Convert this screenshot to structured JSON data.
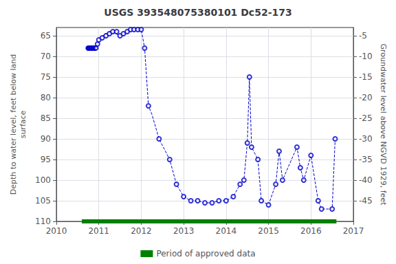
{
  "chart_data": {
    "type": "line",
    "title": "USGS 393548075380101 Dc52-173",
    "ylabel": "Depth to water level, feet below land\nsurface",
    "y2label": "Groundwater level above NGVD 1929, feet",
    "xlim": [
      2010,
      2017
    ],
    "xticks": [
      2010,
      2011,
      2012,
      2013,
      2014,
      2015,
      2016,
      2017
    ],
    "ylim": [
      110,
      63
    ],
    "yticks": [
      65,
      70,
      75,
      80,
      85,
      90,
      95,
      100,
      105,
      110
    ],
    "y2lim": [
      -50,
      -3
    ],
    "y2ticks": [
      -5,
      -10,
      -15,
      -20,
      -25,
      -30,
      -35,
      -40,
      -45
    ],
    "grid": true,
    "legend": "bottom",
    "series": [
      {
        "type": "line",
        "line_style": "dashed",
        "color": "#0000cc",
        "x": [
          2010.75,
          2010.76,
          2010.77,
          2010.78,
          2010.79,
          2010.8,
          2010.81,
          2010.82,
          2010.83,
          2010.84,
          2010.85,
          2010.86,
          2010.87,
          2010.88,
          2010.89,
          2010.9,
          2010.91,
          2010.92,
          2010.93,
          2010.94,
          2010.95,
          2010.96,
          2010.97,
          2010.98,
          2010.99,
          2011.0,
          2011.05,
          2011.1,
          2011.15,
          2011.2,
          2011.25,
          2011.3,
          2011.4,
          2011.5,
          2011.6,
          2011.7,
          2011.75,
          2011.8,
          2011.85,
          2011.9,
          2011.95,
          2012.0,
          2012.08,
          2012.17,
          2012.25,
          2012.42,
          2012.67,
          2012.83,
          2013.0,
          2013.17,
          2013.33,
          2013.5,
          2013.67,
          2013.83,
          2014.0,
          2014.17,
          2014.33,
          2014.42,
          2014.5,
          2014.55,
          2014.6,
          2014.75,
          2014.83,
          2015.0,
          2015.17,
          2015.25,
          2015.33,
          2015.67,
          2015.75,
          2015.83,
          2016.0,
          2016.17,
          2016.25,
          2016.5,
          2016.57
        ],
        "values": [
          68.0,
          68.0,
          68.0,
          68.0,
          68.0,
          68.0,
          68.0,
          68.0,
          68.0,
          68.0,
          68.0,
          68.0,
          68.0,
          68.0,
          68.0,
          68.0,
          68.0,
          68.0,
          68.0,
          68.0,
          67.5,
          67.5,
          67.0,
          67.0,
          66.5,
          66.0,
          65.5,
          65.0,
          64.5,
          64.5,
          64.0,
          64.0,
          64.5,
          65.0,
          64.5,
          64.0,
          63.5,
          63.5,
          63.5,
          63.5,
          63.5,
          63.5,
          68.0,
          82.0,
          84.0,
          90.0,
          95.0,
          101.0,
          104.0,
          105.0,
          105.0,
          105.5,
          105.5,
          105.0,
          105.0,
          104.0,
          101.0,
          100.0,
          91.0,
          75.0,
          92.0,
          95.0,
          105.0,
          106.0,
          101.0,
          93.0,
          100.0,
          92.0,
          97.0,
          100.0,
          94.0,
          105.0,
          107.0,
          107.0,
          90.0
        ]
      },
      {
        "type": "scatter",
        "marker": "circle",
        "color": "#0000cc",
        "x": [
          2010.75,
          2010.83,
          2010.9,
          2010.97,
          2011.0,
          2011.08,
          2011.17,
          2011.25,
          2011.33,
          2011.42,
          2011.5,
          2011.58,
          2011.67,
          2011.75,
          2011.83,
          2011.92,
          2012.0,
          2012.08,
          2012.17,
          2012.42,
          2012.67,
          2012.83,
          2013.0,
          2013.17,
          2013.33,
          2013.5,
          2013.67,
          2013.83,
          2014.0,
          2014.17,
          2014.33,
          2014.42,
          2014.5,
          2014.55,
          2014.6,
          2014.75,
          2014.83,
          2015.0,
          2015.17,
          2015.25,
          2015.33,
          2015.67,
          2015.75,
          2015.83,
          2016.0,
          2016.17,
          2016.25,
          2016.5,
          2016.57
        ],
        "values": [
          68.0,
          68.0,
          68.0,
          67.0,
          66.0,
          65.5,
          65.0,
          64.5,
          64.0,
          64.0,
          65.0,
          64.5,
          64.0,
          63.5,
          63.5,
          63.5,
          63.5,
          68.0,
          82.0,
          90.0,
          95.0,
          101.0,
          104.0,
          105.0,
          105.0,
          105.5,
          105.5,
          105.0,
          105.0,
          104.0,
          101.0,
          100.0,
          91.0,
          75.0,
          92.0,
          95.0,
          105.0,
          106.0,
          101.0,
          93.0,
          100.0,
          92.0,
          97.0,
          100.0,
          94.0,
          105.0,
          107.0,
          107.0,
          90.0
        ]
      },
      {
        "type": "scatter",
        "marker": "circle",
        "color": "#0000cc",
        "x": [
          2010.75,
          2010.76,
          2010.77,
          2010.78,
          2010.79,
          2010.8,
          2010.81,
          2010.82,
          2010.83,
          2010.84,
          2010.85,
          2010.86,
          2010.87,
          2010.88,
          2010.89,
          2010.9,
          2010.91,
          2010.92,
          2010.93,
          2010.94
        ],
        "values": [
          68.0,
          68.0,
          68.0,
          68.0,
          68.0,
          68.0,
          68.0,
          68.0,
          68.0,
          68.0,
          68.0,
          68.0,
          68.0,
          68.0,
          68.0,
          68.0,
          68.0,
          68.0,
          68.0,
          68.0
        ]
      },
      {
        "type": "line",
        "line_style": "solid",
        "name": "Period of approved data",
        "color": "#008000",
        "x": [
          2010.6,
          2016.6
        ],
        "values": [
          110,
          110
        ]
      }
    ]
  }
}
